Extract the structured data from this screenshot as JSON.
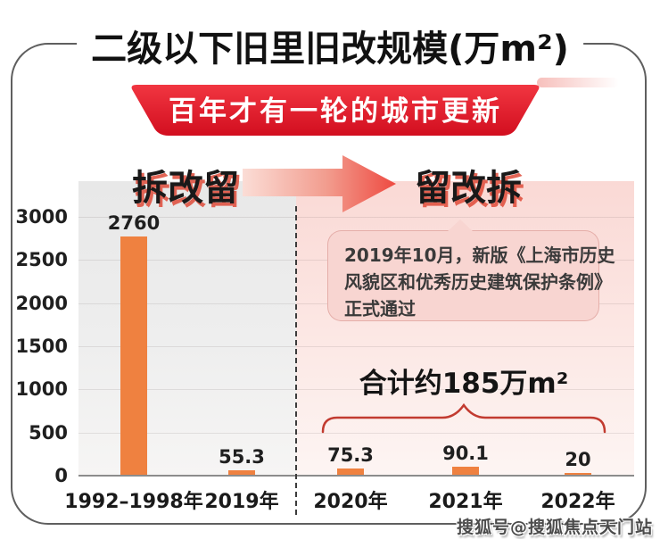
{
  "page": {
    "title": "二级以下旧里旧改规模(万m²)",
    "banner": "百年才有一轮的城市更新",
    "phase_left": "拆改留",
    "phase_right": "留改拆",
    "annotation": {
      "line1": "2019年10月，新版《上海市历史",
      "line2": "风貌区和优秀历史建筑保护条例》",
      "line3": "正式通过"
    },
    "total_label": "合计约185万m²",
    "watermark": "搜狐号@搜狐焦点天门站"
  },
  "chart_data": {
    "type": "bar",
    "title": "二级以下旧里旧改规模(万m²)",
    "categories": [
      "1992–1998年",
      "2019年",
      "2020年",
      "2021年",
      "2022年"
    ],
    "values": [
      2760,
      55.3,
      75.3,
      90.1,
      20
    ],
    "value_labels": [
      "2760",
      "55.3",
      "75.3",
      "90.1",
      "20"
    ],
    "xlabel": "",
    "ylabel": "",
    "ylim": [
      0,
      3000
    ],
    "yticks": [
      0,
      500,
      1000,
      1500,
      2000,
      2500,
      3000
    ],
    "grid": true,
    "legend": "none",
    "bar_color": "#EF8140",
    "divider_after_category_index": 1,
    "group_total": {
      "categories": [
        "2020年",
        "2021年",
        "2022年"
      ],
      "label": "合计约185万m²",
      "value_wan_m2": 185
    }
  },
  "colors": {
    "banner_red_top": "#F13641",
    "banner_red_bottom": "#D20E1F",
    "bar_orange": "#EF8140",
    "era_shadow_red": "#DE4A38",
    "arrow_start_pink": "#FBDDD6",
    "arrow_end_red": "#EE4A41",
    "annotation_bg": "#F8D5D1",
    "brace_red": "#C23B30",
    "plot_left_bg": "#E8E8E8",
    "plot_right_bg": "#FAD9D5",
    "text_dark": "#1A1A1A"
  }
}
